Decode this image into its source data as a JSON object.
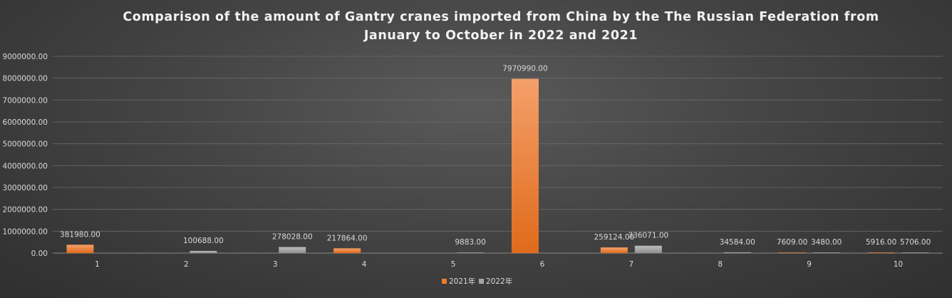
{
  "chart_data": {
    "type": "bar",
    "title_line1": "Comparison of the amount of Gantry cranes imported from China by the The Russian Federation from",
    "title_line2": "January to October in 2022 and 2021",
    "categories": [
      "1",
      "2",
      "3",
      "4",
      "5",
      "6",
      "7",
      "8",
      "9",
      "10"
    ],
    "series": [
      {
        "name": "2021年",
        "color": "#ed7d31",
        "values": [
          381980.0,
          null,
          null,
          217864.0,
          null,
          7970990.0,
          259124.0,
          null,
          7609.0,
          5916.0
        ],
        "labels": [
          "381980.00",
          "",
          "",
          "217864.00",
          "",
          "7970990.00",
          "259124.00",
          "",
          "7609.00",
          "5916.00"
        ]
      },
      {
        "name": "2022年",
        "color": "#a5a5a5",
        "values": [
          null,
          100688.0,
          278028.0,
          null,
          9883.0,
          null,
          336071.0,
          34584.0,
          3480.0,
          5706.0
        ],
        "labels": [
          "",
          "100688.00",
          "278028.00",
          "",
          "9883.00",
          "",
          "336071.00",
          "34584.00",
          "3480.00",
          "5706.00"
        ]
      }
    ],
    "ylim": [
      0,
      9000000
    ],
    "yticks": [
      0,
      1000000,
      2000000,
      3000000,
      4000000,
      5000000,
      6000000,
      7000000,
      8000000,
      9000000
    ],
    "ytick_labels": [
      "0.00",
      "1000000.00",
      "2000000.00",
      "3000000.00",
      "4000000.00",
      "5000000.00",
      "6000000.00",
      "7000000.00",
      "8000000.00",
      "9000000.00"
    ],
    "grid": true,
    "legend_position": "bottom-center"
  }
}
